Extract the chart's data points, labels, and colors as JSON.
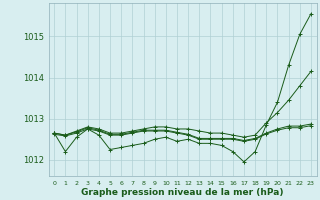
{
  "xlabel": "Graphe pression niveau de la mer (hPa)",
  "background_color": "#d8eef0",
  "grid_color": "#b0d0d4",
  "line_color": "#1a5c1a",
  "text_color": "#1a5c1a",
  "x_ticks": [
    0,
    1,
    2,
    3,
    4,
    5,
    6,
    7,
    8,
    9,
    10,
    11,
    12,
    13,
    14,
    15,
    16,
    17,
    18,
    19,
    20,
    21,
    22,
    23
  ],
  "ylim": [
    1011.6,
    1015.8
  ],
  "y_ticks": [
    1012,
    1013,
    1014,
    1015
  ],
  "series": [
    [
      1012.65,
      1012.2,
      1012.55,
      1012.75,
      1012.6,
      1012.25,
      1012.3,
      1012.35,
      1012.4,
      1012.5,
      1012.55,
      1012.45,
      1012.5,
      1012.4,
      1012.4,
      1012.35,
      1012.2,
      1011.95,
      1012.2,
      1012.85,
      1013.4,
      1014.3,
      1015.05,
      1015.55
    ],
    [
      1012.65,
      1012.6,
      1012.7,
      1012.8,
      1012.75,
      1012.65,
      1012.65,
      1012.7,
      1012.75,
      1012.8,
      1012.8,
      1012.75,
      1012.75,
      1012.7,
      1012.65,
      1012.65,
      1012.6,
      1012.55,
      1012.6,
      1012.9,
      1013.15,
      1013.45,
      1013.8,
      1014.15
    ],
    [
      1012.65,
      1012.6,
      1012.68,
      1012.78,
      1012.72,
      1012.62,
      1012.62,
      1012.67,
      1012.72,
      1012.72,
      1012.72,
      1012.67,
      1012.62,
      1012.52,
      1012.52,
      1012.52,
      1012.52,
      1012.47,
      1012.52,
      1012.65,
      1012.75,
      1012.82,
      1012.82,
      1012.87
    ],
    [
      1012.62,
      1012.58,
      1012.65,
      1012.75,
      1012.7,
      1012.6,
      1012.6,
      1012.65,
      1012.7,
      1012.7,
      1012.7,
      1012.65,
      1012.6,
      1012.5,
      1012.5,
      1012.5,
      1012.5,
      1012.45,
      1012.5,
      1012.63,
      1012.72,
      1012.78,
      1012.78,
      1012.83
    ]
  ]
}
